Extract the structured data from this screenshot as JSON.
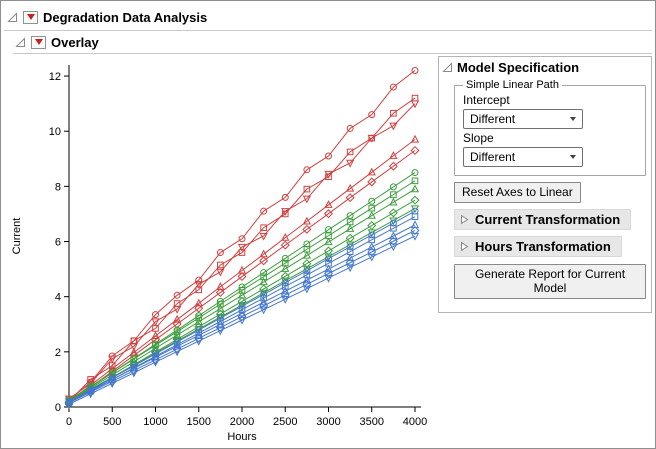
{
  "headers": {
    "main": "Degradation Data Analysis",
    "overlay": "Overlay"
  },
  "colors": {
    "red_triangle_menu": "#CC1F1F",
    "series_red": "#D23F3F",
    "series_green": "#3E9E3E",
    "series_blue": "#4477CC"
  },
  "chart_data": {
    "type": "line",
    "title": "",
    "xlabel": "Hours",
    "ylabel": "Current",
    "xlim": [
      0,
      4000
    ],
    "ylim": [
      0,
      12
    ],
    "xticks": [
      0,
      500,
      1000,
      1500,
      2000,
      2500,
      3000,
      3500,
      4000
    ],
    "yticks": [
      0,
      2,
      4,
      6,
      8,
      10,
      12
    ],
    "grid": false,
    "legend": "none",
    "x": [
      0,
      250,
      500,
      750,
      1000,
      1250,
      1500,
      1750,
      2000,
      2250,
      2500,
      2750,
      3000,
      3250,
      3500,
      3750,
      4000
    ],
    "series": [
      {
        "id": "red-1",
        "color": "#D23F3F",
        "marker": "circle",
        "values": [
          0.25,
          0.9,
          1.85,
          2.4,
          3.35,
          4.05,
          4.6,
          5.6,
          6.1,
          7.1,
          7.6,
          8.6,
          9.1,
          10.1,
          10.6,
          11.6,
          12.2
        ]
      },
      {
        "id": "red-2",
        "color": "#D23F3F",
        "marker": "square",
        "values": [
          0.2,
          1.0,
          1.5,
          2.4,
          2.85,
          3.75,
          4.25,
          5.15,
          5.6,
          6.5,
          7.0,
          7.9,
          8.35,
          9.25,
          9.75,
          10.65,
          11.2
        ]
      },
      {
        "id": "red-3",
        "color": "#D23F3F",
        "marker": "triangle-down",
        "values": [
          0.3,
          0.85,
          1.75,
          2.2,
          3.1,
          3.55,
          4.45,
          4.9,
          5.8,
          6.2,
          7.1,
          7.55,
          8.45,
          8.85,
          9.75,
          10.2,
          11.0
        ]
      },
      {
        "id": "red-4",
        "color": "#D23F3F",
        "marker": "triangle",
        "values": [
          0.2,
          0.79,
          1.39,
          1.98,
          2.58,
          3.17,
          3.76,
          4.36,
          4.95,
          5.54,
          6.14,
          6.73,
          7.33,
          7.92,
          8.51,
          9.11,
          9.7
        ]
      },
      {
        "id": "red-5",
        "color": "#D23F3F",
        "marker": "diamond",
        "values": [
          0.15,
          0.72,
          1.29,
          1.87,
          2.44,
          3.01,
          3.58,
          4.15,
          4.73,
          5.3,
          5.87,
          6.44,
          7.01,
          7.59,
          8.16,
          8.73,
          9.3
        ]
      },
      {
        "id": "green-1",
        "color": "#3E9E3E",
        "marker": "circle",
        "values": [
          0.2,
          0.72,
          1.24,
          1.76,
          2.28,
          2.79,
          3.31,
          3.83,
          4.35,
          4.87,
          5.39,
          5.91,
          6.43,
          6.94,
          7.46,
          7.98,
          8.5
        ]
      },
      {
        "id": "green-2",
        "color": "#3E9E3E",
        "marker": "square",
        "values": [
          0.25,
          0.75,
          1.24,
          1.74,
          2.24,
          2.73,
          3.23,
          3.73,
          4.23,
          4.72,
          5.22,
          5.72,
          6.21,
          6.71,
          7.21,
          7.7,
          8.2
        ]
      },
      {
        "id": "green-3",
        "color": "#3E9E3E",
        "marker": "triangle",
        "values": [
          0.2,
          0.68,
          1.16,
          1.64,
          2.13,
          2.61,
          3.09,
          3.57,
          4.05,
          4.53,
          5.01,
          5.49,
          5.98,
          6.46,
          6.94,
          7.42,
          7.9
        ]
      },
      {
        "id": "green-4",
        "color": "#3E9E3E",
        "marker": "diamond",
        "values": [
          0.15,
          0.61,
          1.07,
          1.53,
          1.99,
          2.45,
          2.91,
          3.37,
          3.83,
          4.28,
          4.74,
          5.2,
          5.66,
          6.12,
          6.58,
          7.04,
          7.5
        ]
      },
      {
        "id": "green-5",
        "color": "#3E9E3E",
        "marker": "triangle-down",
        "values": [
          0.2,
          0.64,
          1.08,
          1.51,
          1.95,
          2.39,
          2.83,
          3.26,
          3.7,
          4.14,
          4.58,
          5.01,
          5.45,
          5.89,
          6.33,
          6.76,
          7.2
        ]
      },
      {
        "id": "blue-1",
        "color": "#4477CC",
        "marker": "circle",
        "values": [
          0.2,
          0.63,
          1.06,
          1.49,
          1.93,
          2.36,
          2.79,
          3.22,
          3.65,
          4.08,
          4.51,
          4.94,
          5.38,
          5.81,
          6.24,
          6.67,
          7.1
        ]
      },
      {
        "id": "blue-2",
        "color": "#4477CC",
        "marker": "square",
        "values": [
          0.15,
          0.57,
          0.99,
          1.42,
          1.84,
          2.26,
          2.68,
          3.1,
          3.53,
          3.95,
          4.37,
          4.79,
          5.21,
          5.63,
          6.06,
          6.48,
          6.9
        ]
      },
      {
        "id": "blue-3",
        "color": "#4477CC",
        "marker": "triangle",
        "values": [
          0.2,
          0.6,
          1.0,
          1.4,
          1.8,
          2.2,
          2.6,
          3.0,
          3.4,
          3.8,
          4.2,
          4.6,
          5.0,
          5.4,
          5.8,
          6.2,
          6.6
        ]
      },
      {
        "id": "blue-4",
        "color": "#4477CC",
        "marker": "diamond",
        "values": [
          0.15,
          0.54,
          0.93,
          1.32,
          1.71,
          2.1,
          2.49,
          2.88,
          3.28,
          3.67,
          4.06,
          4.45,
          4.84,
          5.23,
          5.62,
          6.01,
          6.4
        ]
      },
      {
        "id": "blue-5",
        "color": "#4477CC",
        "marker": "triangle-down",
        "values": [
          0.1,
          0.48,
          0.86,
          1.24,
          1.63,
          2.01,
          2.39,
          2.77,
          3.15,
          3.53,
          3.91,
          4.29,
          4.68,
          5.06,
          5.44,
          5.82,
          6.2
        ]
      }
    ]
  },
  "model_specification": {
    "title": "Model Specification",
    "group_title": "Simple Linear Path",
    "intercept_label": "Intercept",
    "intercept_value": "Different",
    "slope_label": "Slope",
    "slope_value": "Different",
    "reset_button": "Reset Axes to Linear",
    "current_transformation": "Current Transformation",
    "hours_transformation": "Hours Transformation",
    "generate_button": "Generate Report for Current Model"
  }
}
